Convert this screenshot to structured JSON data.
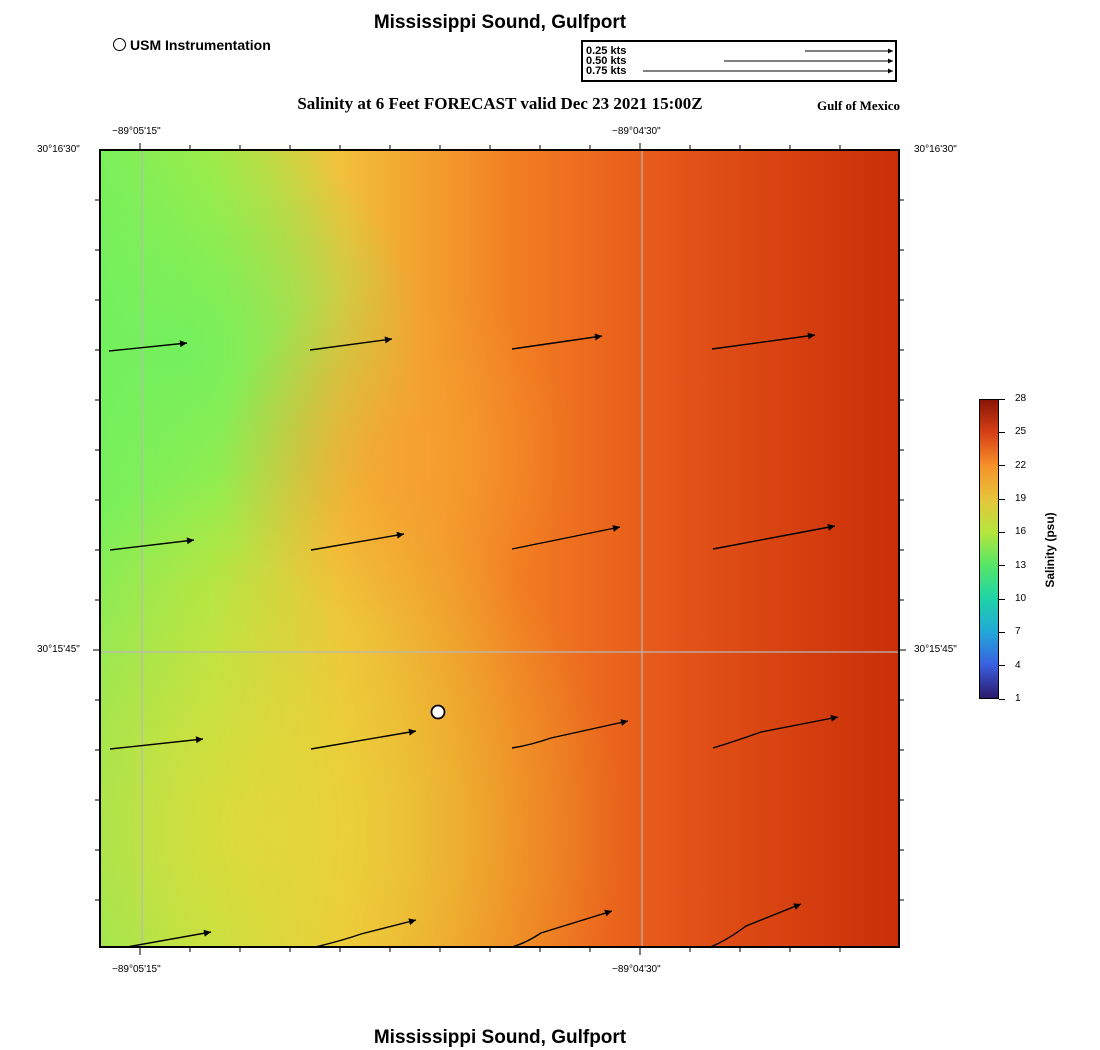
{
  "header": {
    "title": "Mississippi Sound, Gulfport",
    "instrument_label": "USM Instrumentation",
    "subtitle": "Salinity at 6 Feet FORECAST valid Dec 23 2021 15:00Z",
    "region": "Gulf of Mexico"
  },
  "speed_scale": [
    {
      "label": "0.25 kts",
      "speed_kts": 0.25
    },
    {
      "label": "0.50 kts",
      "speed_kts": 0.5
    },
    {
      "label": "0.75 kts",
      "speed_kts": 0.75
    }
  ],
  "axes": {
    "lon_labels": [
      "−89°05'15\"",
      "−89°04'30\""
    ],
    "lat_labels": [
      "30°16'30\"",
      "30°15'45\""
    ]
  },
  "colorbar": {
    "title": "Salinity (psu)",
    "ticks": [
      "1",
      "4",
      "7",
      "10",
      "13",
      "16",
      "19",
      "22",
      "25",
      "28"
    ],
    "range": [
      1,
      28
    ],
    "colors": [
      "#2b1a6b",
      "#3a5fe0",
      "#21a8d8",
      "#1fd3a8",
      "#55e667",
      "#b4e63c",
      "#e6c53a",
      "#f6922a",
      "#d84016",
      "#8a1506"
    ]
  },
  "station": {
    "name": "USM Instrumentation"
  },
  "footer": {
    "title": "Mississippi Sound, Gulfport"
  }
}
